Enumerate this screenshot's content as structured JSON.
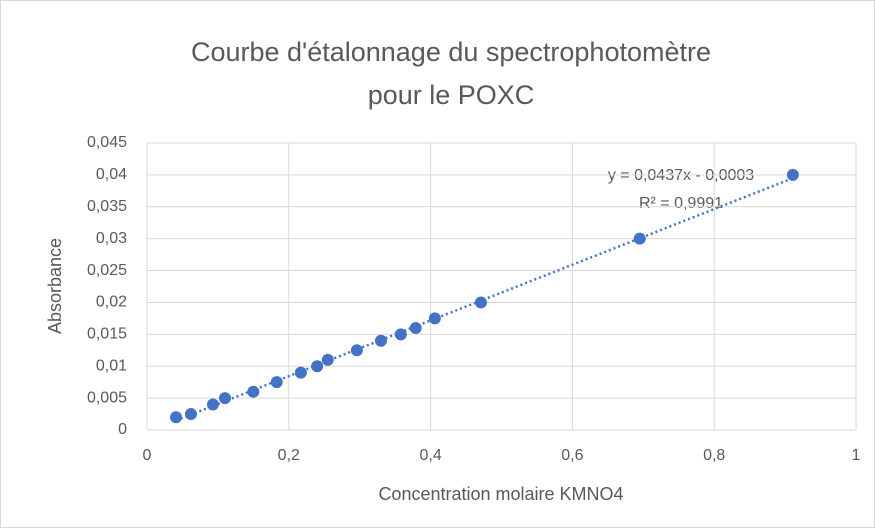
{
  "chart_data": {
    "type": "scatter",
    "title": "Courbe d'étalonnage du spectrophotomètre pour le POXC",
    "x_label": "Concentration molaire KMNO4",
    "y_label": "Absorbance",
    "annotations": [
      "y = 0,0437x - 0,0003",
      "R² = 0,9991"
    ],
    "trendline": "linear",
    "series": [
      {
        "color": "#4472c4",
        "x": [
          0.041,
          0.062,
          0.093,
          0.11,
          0.15,
          0.183,
          0.217,
          0.24,
          0.255,
          0.296,
          0.33,
          0.358,
          0.379,
          0.406,
          0.471,
          0.695,
          0.911
        ],
        "values": [
          0.002,
          0.0025,
          0.004,
          0.005,
          0.006,
          0.0075,
          0.009,
          0.01,
          0.011,
          0.0125,
          0.014,
          0.015,
          0.016,
          0.0175,
          0.02,
          0.03,
          0.04
        ]
      }
    ],
    "xlim": [
      0,
      1
    ],
    "xticks": [
      0,
      {
        "value": 0.2,
        "label": "0,2"
      },
      {
        "value": 0.4,
        "label": "0,4"
      },
      {
        "value": 0.6,
        "label": "0,6"
      },
      {
        "value": 0.8,
        "label": "0,8"
      },
      1
    ],
    "ylim": [
      0,
      0.045
    ],
    "yticks": [
      0,
      {
        "value": 0.005,
        "label": "0,005"
      },
      {
        "value": 0.01,
        "label": "0,01"
      },
      {
        "value": 0.015,
        "label": "0,015"
      },
      {
        "value": 0.02,
        "label": "0,02"
      },
      {
        "value": 0.025,
        "label": "0,025"
      },
      {
        "value": 0.03,
        "label": "0,03"
      },
      {
        "value": 0.035,
        "label": "0,035"
      },
      {
        "value": 0.04,
        "label": "0,04"
      },
      {
        "value": 0.045,
        "label": "0,045"
      }
    ],
    "grid": true
  }
}
